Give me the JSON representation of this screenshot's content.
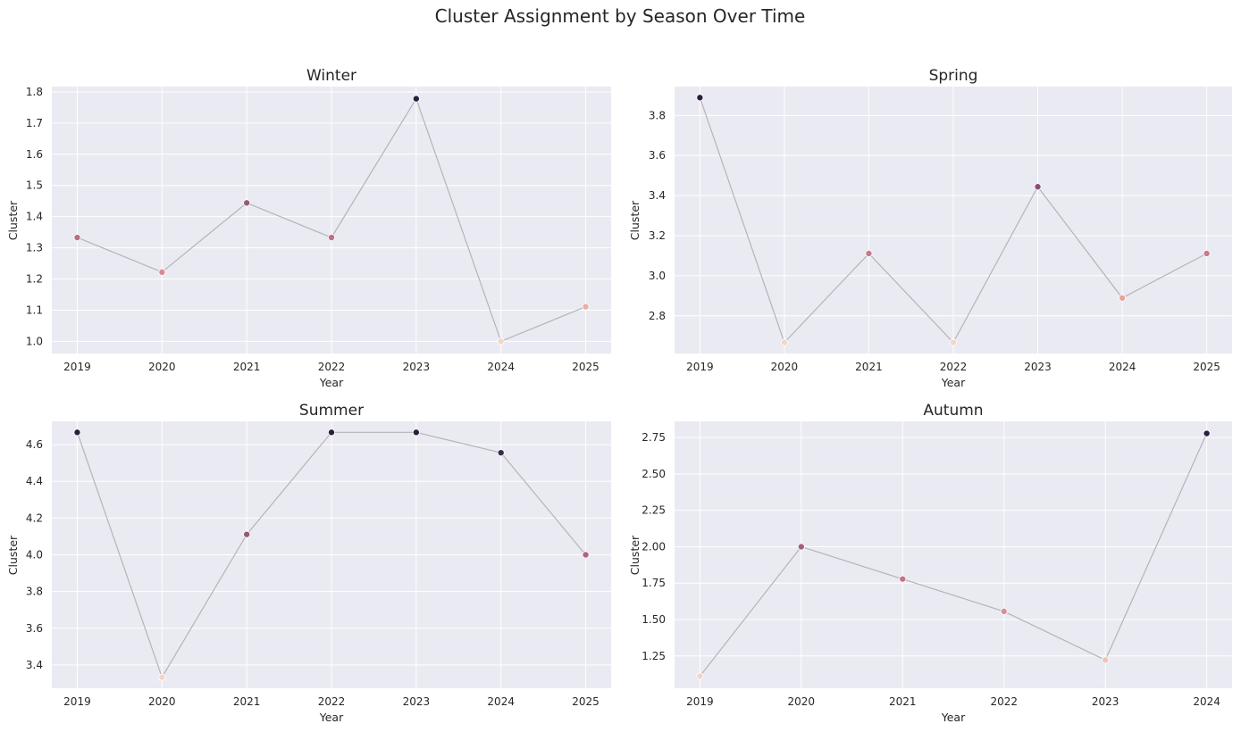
{
  "figure": {
    "title": "Cluster Assignment by Season Over Time"
  },
  "colors": {
    "plot_background": "#eaeaf2",
    "grid": "#ffffff",
    "line": "#b4b4b8",
    "marker_palette": [
      "#f2d6c6",
      "#e8a99c",
      "#cf7f8f",
      "#b0637f",
      "#7d4a75",
      "#4a3460",
      "#2a1f3d"
    ]
  },
  "chart_data": [
    {
      "type": "line",
      "title": "Winter",
      "xlabel": "Year",
      "ylabel": "Cluster",
      "x": [
        2019,
        2020,
        2021,
        2022,
        2023,
        2024,
        2025
      ],
      "y": [
        1.333,
        1.222,
        1.444,
        1.333,
        1.778,
        1.0,
        1.111
      ],
      "xlim": [
        2018.7,
        2025.3
      ],
      "ylim": [
        0.961,
        1.817
      ],
      "yticks": [
        1.0,
        1.1,
        1.2,
        1.3,
        1.4,
        1.5,
        1.6,
        1.7,
        1.8
      ],
      "ytick_labels": [
        "1.0",
        "1.1",
        "1.2",
        "1.3",
        "1.4",
        "1.5",
        "1.6",
        "1.7",
        "1.8"
      ],
      "xtick_labels": [
        "2019",
        "2020",
        "2021",
        "2022",
        "2023",
        "2024",
        "2025"
      ],
      "grid": true
    },
    {
      "type": "line",
      "title": "Spring",
      "xlabel": "Year",
      "ylabel": "Cluster",
      "x": [
        2019,
        2020,
        2021,
        2022,
        2023,
        2024,
        2025
      ],
      "y": [
        3.889,
        2.667,
        3.111,
        2.667,
        3.444,
        2.889,
        3.111
      ],
      "xlim": [
        2018.7,
        2025.3
      ],
      "ylim": [
        2.612,
        3.944
      ],
      "yticks": [
        2.8,
        3.0,
        3.2,
        3.4,
        3.6,
        3.8
      ],
      "ytick_labels": [
        "2.8",
        "3.0",
        "3.2",
        "3.4",
        "3.6",
        "3.8"
      ],
      "xtick_labels": [
        "2019",
        "2020",
        "2021",
        "2022",
        "2023",
        "2024",
        "2025"
      ],
      "grid": true
    },
    {
      "type": "line",
      "title": "Summer",
      "xlabel": "Year",
      "ylabel": "Cluster",
      "x": [
        2019,
        2020,
        2021,
        2022,
        2023,
        2024,
        2025
      ],
      "y": [
        4.667,
        3.333,
        4.111,
        4.667,
        4.667,
        4.556,
        4.0
      ],
      "xlim": [
        2018.7,
        2025.3
      ],
      "ylim": [
        3.273,
        4.727
      ],
      "yticks": [
        3.4,
        3.6,
        3.8,
        4.0,
        4.2,
        4.4,
        4.6
      ],
      "ytick_labels": [
        "3.4",
        "3.6",
        "3.8",
        "4.0",
        "4.2",
        "4.4",
        "4.6"
      ],
      "xtick_labels": [
        "2019",
        "2020",
        "2021",
        "2022",
        "2023",
        "2024",
        "2025"
      ],
      "grid": true
    },
    {
      "type": "line",
      "title": "Autumn",
      "xlabel": "Year",
      "ylabel": "Cluster",
      "x": [
        2019,
        2020,
        2021,
        2022,
        2023,
        2024
      ],
      "y": [
        1.111,
        2.0,
        1.778,
        1.556,
        1.222,
        2.778
      ],
      "xlim": [
        2018.75,
        2024.25
      ],
      "ylim": [
        1.028,
        2.861
      ],
      "yticks": [
        1.25,
        1.5,
        1.75,
        2.0,
        2.25,
        2.5,
        2.75
      ],
      "ytick_labels": [
        "1.25",
        "1.50",
        "1.75",
        "2.00",
        "2.25",
        "2.50",
        "2.75"
      ],
      "xtick_labels": [
        "2019",
        "2020",
        "2021",
        "2022",
        "2023",
        "2024"
      ],
      "grid": true
    }
  ]
}
